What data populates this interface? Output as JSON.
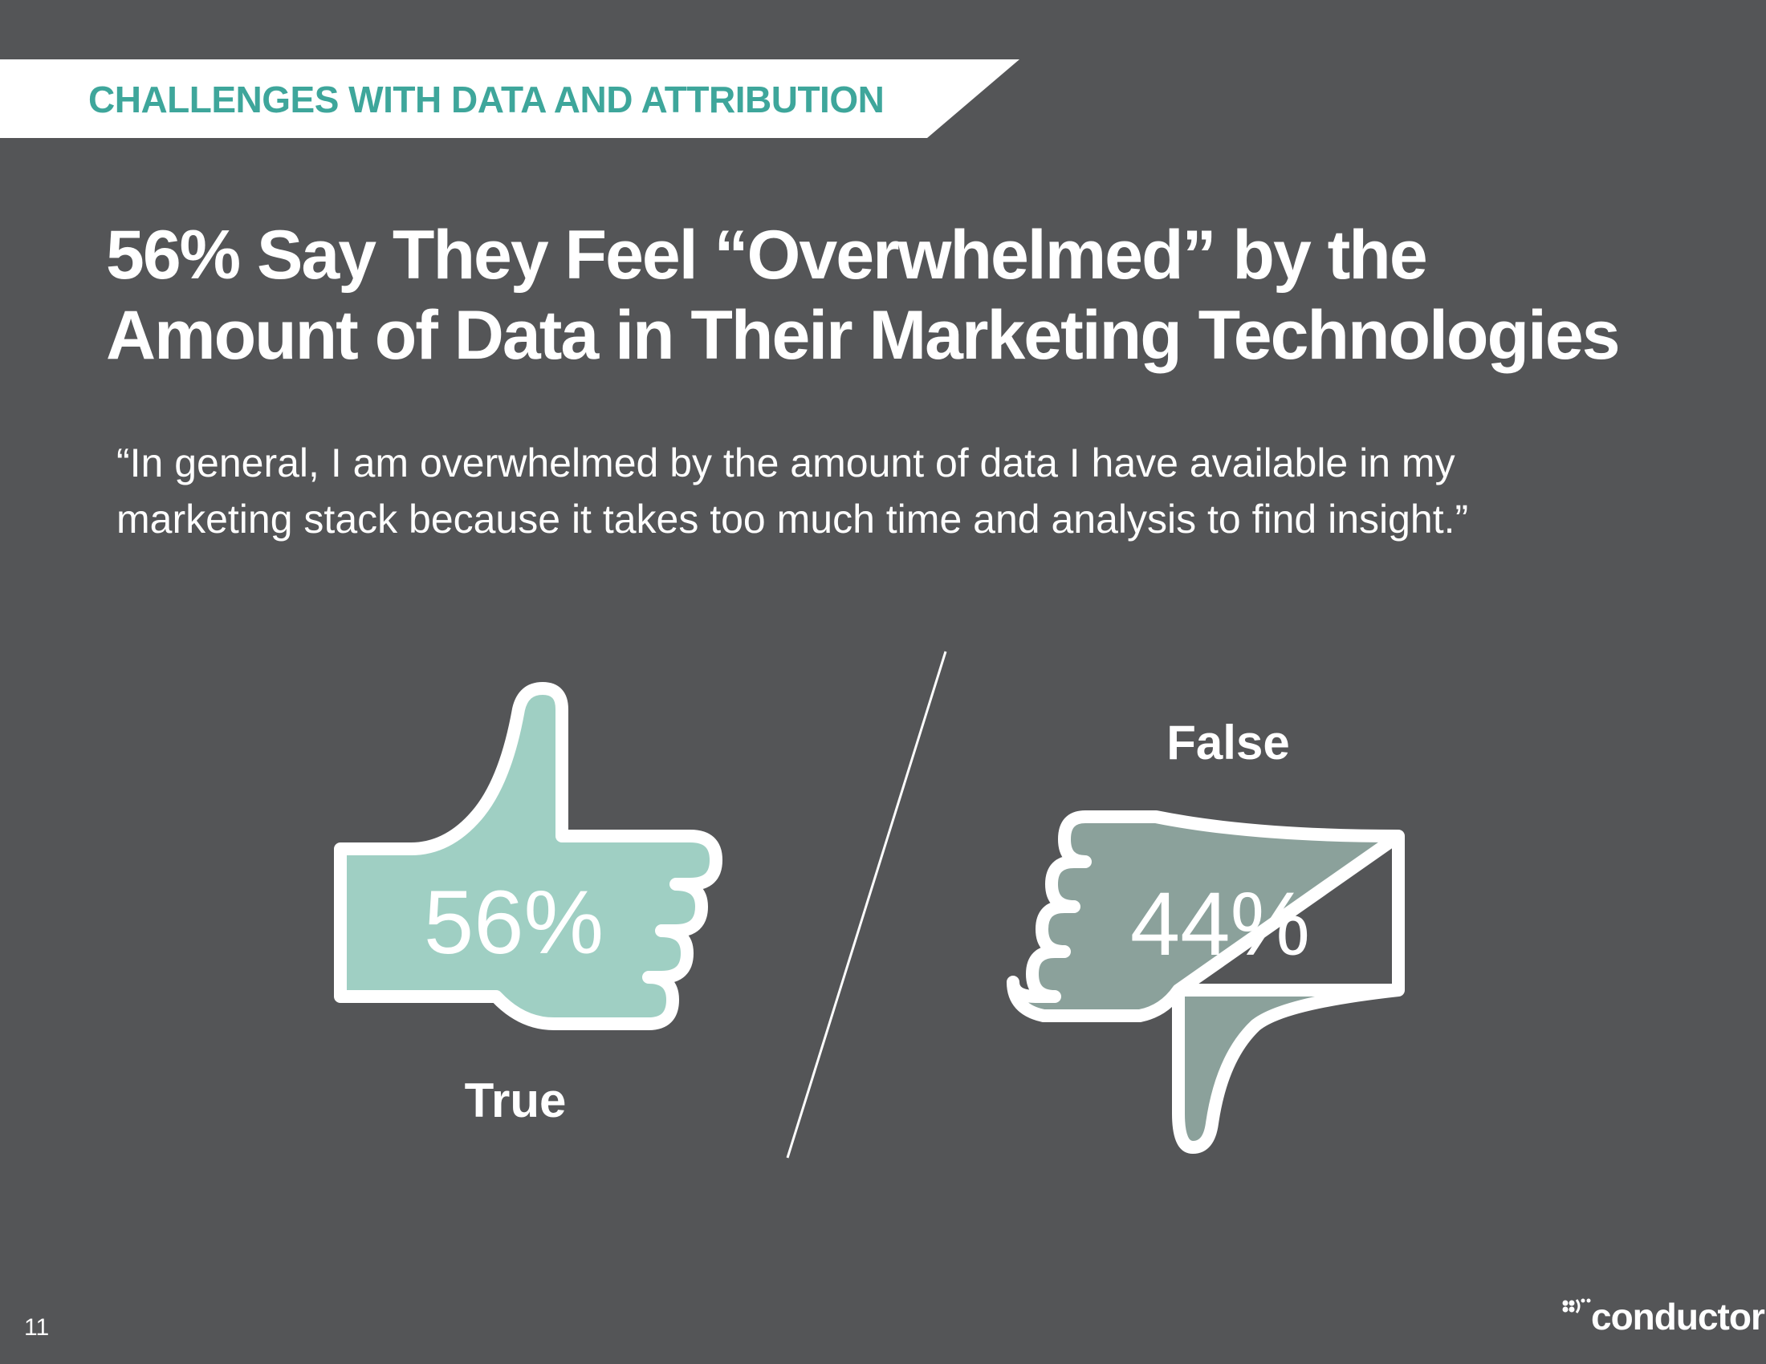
{
  "section_label": "CHALLENGES WITH DATA AND ATTRIBUTION",
  "headline": {
    "line1": "56% Say They Feel “Overwhelmed” by the",
    "line2": "Amount of Data in Their Marketing Technologies"
  },
  "quote": {
    "line1": "“In general, I am overwhelmed by the amount of data I have available in my",
    "line2": "marketing stack because it takes too much time and analysis to find insight.”"
  },
  "chart_data": {
    "type": "pictograph",
    "categories": [
      "True",
      "False"
    ],
    "values": [
      56,
      44
    ],
    "value_labels": [
      "56%",
      "44%"
    ],
    "icons": [
      "thumbs-up-icon",
      "thumbs-down-icon"
    ],
    "colors": [
      "#9fcfc3",
      "#8ba19b"
    ]
  },
  "footer": {
    "page_number": "11",
    "brand": "conductor"
  },
  "colors": {
    "background": "#545557",
    "accent": "#3ea69b",
    "banner": "#ffffff",
    "text": "#ffffff"
  }
}
